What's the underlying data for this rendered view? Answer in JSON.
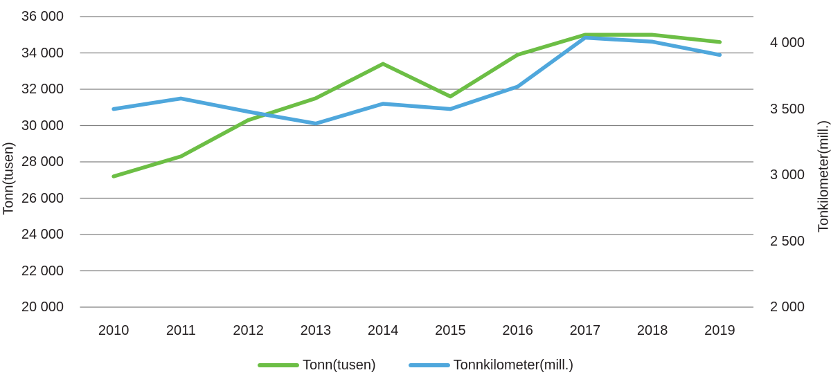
{
  "chart_data": {
    "type": "line",
    "title": "",
    "categories": [
      "2010",
      "2011",
      "2012",
      "2013",
      "2014",
      "2015",
      "2016",
      "2017",
      "2018",
      "2019"
    ],
    "series": [
      {
        "name": "Tonn(tusen)",
        "axis": "left",
        "color": "#6CBE45",
        "values": [
          27200,
          28300,
          30300,
          31500,
          33400,
          31600,
          33900,
          35000,
          35000,
          34600
        ]
      },
      {
        "name": "Tonnkilometer(mill.)",
        "axis": "right",
        "color": "#4FA7DC",
        "values": [
          3500,
          3580,
          3480,
          3390,
          3540,
          3500,
          3670,
          4040,
          4010,
          3910
        ]
      }
    ],
    "left_axis": {
      "label": "Tonn(tusen)",
      "min": 20000,
      "max": 36000,
      "tick_step": 2000,
      "tick_values": [
        36000,
        34000,
        32000,
        30000,
        28000,
        26000,
        24000,
        22000,
        20000
      ],
      "tick_labels": [
        "36 000",
        "34 000",
        "32 000",
        "30 000",
        "28 000",
        "26 000",
        "24 000",
        "22 000",
        "20 000"
      ]
    },
    "right_axis": {
      "label": "Tonkilometer(mill.)",
      "min": 2000,
      "max": 4200,
      "tick_step": 500,
      "tick_values": [
        4000,
        3500,
        3000,
        2500,
        2000
      ],
      "tick_labels": [
        "4 000",
        "3 500",
        "3 000",
        "2 500",
        "2 000"
      ]
    },
    "grid": true,
    "legend_position": "bottom",
    "legend": [
      {
        "label": "Tonn(tusen)",
        "color": "#6CBE45"
      },
      {
        "label": "Tonnkilometer(mill.)",
        "color": "#4FA7DC"
      }
    ]
  },
  "styles": {
    "background": "#ffffff",
    "grid_color": "#808080",
    "text_color": "#231f20",
    "line_width": 5.5
  }
}
